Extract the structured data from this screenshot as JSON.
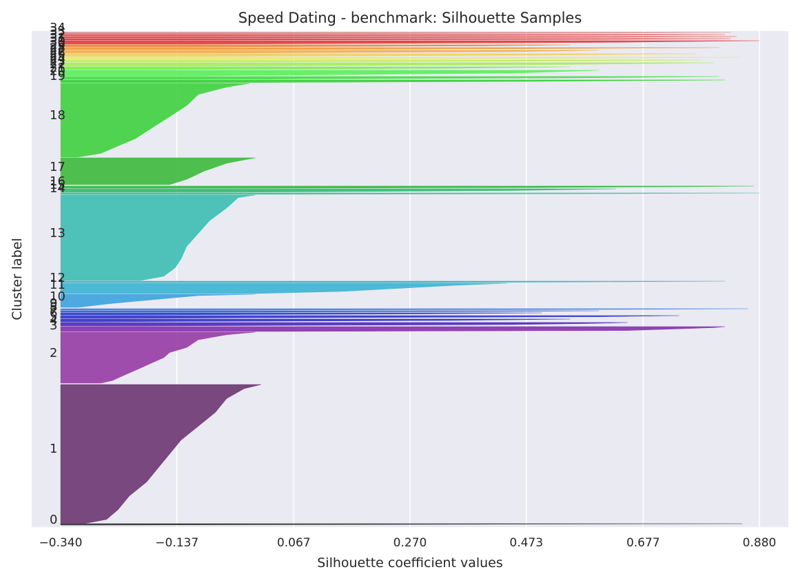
{
  "chart_data": {
    "type": "silhouette",
    "title": "Speed Dating - benchmark: Silhouette Samples",
    "xlabel": "Silhouette coefficient values",
    "ylabel": "Cluster label",
    "xlim": [
      -0.34,
      0.88
    ],
    "x_ticks": [
      -0.34,
      -0.137,
      0.067,
      0.27,
      0.473,
      0.677,
      0.88
    ],
    "x_tick_labels": [
      "−0.340",
      "−0.137",
      "0.067",
      "0.270",
      "0.473",
      "0.677",
      "0.880"
    ],
    "grid": true,
    "background": "#eaeaf2",
    "clusters": [
      {
        "label": "0",
        "color": "#353535",
        "profile": [
          [
            0,
            0.85
          ],
          [
            1,
            -0.34
          ]
        ]
      },
      {
        "label": "1",
        "color": "#723f78",
        "profile": [
          [
            0,
            0.01
          ],
          [
            0.03,
            -0.02
          ],
          [
            0.1,
            -0.05
          ],
          [
            0.2,
            -0.07
          ],
          [
            0.3,
            -0.1
          ],
          [
            0.4,
            -0.13
          ],
          [
            0.5,
            -0.15
          ],
          [
            0.6,
            -0.17
          ],
          [
            0.7,
            -0.19
          ],
          [
            0.8,
            -0.22
          ],
          [
            0.9,
            -0.24
          ],
          [
            0.97,
            -0.26
          ],
          [
            1,
            -0.3
          ]
        ]
      },
      {
        "label": "2",
        "color": "#9b45a8",
        "profile": [
          [
            0,
            0.0
          ],
          [
            0.05,
            -0.05
          ],
          [
            0.15,
            -0.1
          ],
          [
            0.3,
            -0.12
          ],
          [
            0.4,
            -0.15
          ],
          [
            0.5,
            -0.16
          ],
          [
            0.6,
            -0.18
          ],
          [
            0.7,
            -0.2
          ],
          [
            0.85,
            -0.23
          ],
          [
            0.95,
            -0.25
          ],
          [
            1,
            -0.27
          ]
        ]
      },
      {
        "label": "3",
        "color": "#8b3ab0",
        "profile": [
          [
            0,
            0.82
          ],
          [
            0.2,
            0.8
          ],
          [
            0.5,
            0.73
          ],
          [
            0.8,
            0.65
          ],
          [
            1,
            0.0
          ]
        ]
      },
      {
        "label": "4",
        "color": "#5234c0",
        "profile": [
          [
            0,
            0.65
          ],
          [
            0.3,
            0.58
          ],
          [
            0.6,
            0.45
          ],
          [
            1,
            -0.2
          ]
        ]
      },
      {
        "label": "5",
        "color": "#3a38c6",
        "profile": [
          [
            0,
            0.55
          ],
          [
            0.5,
            0.35
          ],
          [
            1,
            -0.3
          ]
        ]
      },
      {
        "label": "6",
        "color": "#3b3bd0",
        "profile": [
          [
            0,
            0.74
          ],
          [
            0.4,
            0.6
          ],
          [
            1,
            -0.25
          ]
        ]
      },
      {
        "label": "7",
        "color": "#2b47c8",
        "profile": [
          [
            0,
            0.5
          ],
          [
            0.5,
            0.3
          ],
          [
            1,
            -0.2
          ]
        ]
      },
      {
        "label": "8",
        "color": "#3a60d6",
        "profile": [
          [
            0,
            0.6
          ],
          [
            0.5,
            0.4
          ],
          [
            1,
            -0.1
          ]
        ]
      },
      {
        "label": "9",
        "color": "#3f80e0",
        "profile": [
          [
            0,
            0.86
          ],
          [
            0.5,
            0.6
          ],
          [
            1,
            -0.1
          ]
        ]
      },
      {
        "label": "10",
        "color": "#45a5de",
        "profile": [
          [
            0,
            -0.0
          ],
          [
            0.1,
            -0.1
          ],
          [
            0.3,
            -0.15
          ],
          [
            0.5,
            -0.2
          ],
          [
            0.7,
            -0.25
          ],
          [
            0.9,
            -0.29
          ],
          [
            1,
            -0.31
          ]
        ]
      },
      {
        "label": "11",
        "color": "#43b6d4",
        "profile": [
          [
            0,
            0.44
          ],
          [
            0.2,
            0.35
          ],
          [
            0.5,
            0.25
          ],
          [
            0.8,
            0.15
          ],
          [
            1,
            0.0
          ]
        ]
      },
      {
        "label": "12",
        "color": "#3fb6c2",
        "profile": [
          [
            0,
            0.82
          ],
          [
            0.5,
            0.6
          ],
          [
            1,
            0.3
          ]
        ]
      },
      {
        "label": "13",
        "color": "#46bfb5",
        "profile": [
          [
            0,
            0.0
          ],
          [
            0.03,
            -0.03
          ],
          [
            0.15,
            -0.05
          ],
          [
            0.3,
            -0.08
          ],
          [
            0.45,
            -0.1
          ],
          [
            0.6,
            -0.12
          ],
          [
            0.75,
            -0.13
          ],
          [
            0.85,
            -0.14
          ],
          [
            0.95,
            -0.16
          ],
          [
            1,
            -0.2
          ]
        ]
      },
      {
        "label": "14",
        "color": "#3ec29a",
        "profile": [
          [
            0,
            0.88
          ],
          [
            0.5,
            0.6
          ],
          [
            1,
            0.0
          ]
        ]
      },
      {
        "label": "15",
        "color": "#3bbf72",
        "profile": [
          [
            0,
            0.63
          ],
          [
            0.5,
            0.45
          ],
          [
            1,
            -0.05
          ]
        ]
      },
      {
        "label": "16",
        "color": "#3cb84a",
        "profile": [
          [
            0,
            0.87
          ],
          [
            0.3,
            0.75
          ],
          [
            0.7,
            0.5
          ],
          [
            1,
            -0.05
          ]
        ]
      },
      {
        "label": "17",
        "color": "#46bd46",
        "profile": [
          [
            0,
            -0.0
          ],
          [
            0.2,
            -0.05
          ],
          [
            0.5,
            -0.09
          ],
          [
            0.8,
            -0.12
          ],
          [
            1,
            -0.15
          ]
        ]
      },
      {
        "label": "18",
        "color": "#48d248",
        "profile": [
          [
            0,
            -0.01
          ],
          [
            0.05,
            -0.05
          ],
          [
            0.15,
            -0.1
          ],
          [
            0.3,
            -0.12
          ],
          [
            0.45,
            -0.15
          ],
          [
            0.6,
            -0.18
          ],
          [
            0.75,
            -0.21
          ],
          [
            0.85,
            -0.24
          ],
          [
            0.95,
            -0.27
          ],
          [
            1,
            -0.31
          ]
        ]
      },
      {
        "label": "19",
        "color": "#3ed23e",
        "profile": [
          [
            0,
            0.82
          ],
          [
            0.5,
            0.5
          ],
          [
            1,
            -0.1
          ]
        ]
      },
      {
        "label": "20",
        "color": "#48e048",
        "profile": [
          [
            0,
            0.81
          ],
          [
            0.5,
            0.55
          ],
          [
            1,
            -0.1
          ]
        ]
      },
      {
        "label": "21",
        "color": "#5ef05e",
        "profile": [
          [
            0,
            0.6
          ],
          [
            0.5,
            0.45
          ],
          [
            1,
            -0.1
          ]
        ]
      },
      {
        "label": "22",
        "color": "#7bf050",
        "profile": [
          [
            0,
            0.55
          ],
          [
            0.5,
            0.35
          ],
          [
            1,
            -0.2
          ]
        ]
      },
      {
        "label": "23",
        "color": "#aaee5a",
        "profile": [
          [
            0,
            0.8
          ],
          [
            0.5,
            0.55
          ],
          [
            1,
            -0.1
          ]
        ]
      },
      {
        "label": "24",
        "color": "#c8ec68",
        "profile": [
          [
            0,
            0.78
          ],
          [
            0.5,
            0.55
          ],
          [
            1,
            -0.1
          ]
        ]
      },
      {
        "label": "25",
        "color": "#e6ec76",
        "profile": [
          [
            0,
            0.85
          ],
          [
            0.5,
            0.6
          ],
          [
            1,
            -0.1
          ]
        ]
      },
      {
        "label": "26",
        "color": "#f0d265",
        "profile": [
          [
            0,
            0.77
          ],
          [
            0.5,
            0.5
          ],
          [
            1,
            -0.1
          ]
        ]
      },
      {
        "label": "27",
        "color": "#f5b04f",
        "profile": [
          [
            0,
            0.6
          ],
          [
            0.5,
            0.45
          ],
          [
            1,
            -0.1
          ]
        ]
      },
      {
        "label": "28",
        "color": "#f0a040",
        "profile": [
          [
            0,
            0.81
          ],
          [
            0.5,
            0.5
          ],
          [
            1,
            -0.05
          ]
        ]
      },
      {
        "label": "29",
        "color": "#ef8a35",
        "profile": [
          [
            0,
            0.55
          ],
          [
            0.5,
            0.4
          ],
          [
            1,
            -0.1
          ]
        ]
      },
      {
        "label": "30",
        "color": "#e84040",
        "profile": [
          [
            0,
            0.88
          ],
          [
            0.5,
            0.6
          ],
          [
            1,
            -0.1
          ]
        ]
      },
      {
        "label": "31",
        "color": "#e63a3a",
        "profile": [
          [
            0,
            0.83
          ],
          [
            0.5,
            0.6
          ],
          [
            1,
            -0.1
          ]
        ]
      },
      {
        "label": "32",
        "color": "#e04848",
        "profile": [
          [
            0,
            0.84
          ],
          [
            0.5,
            0.6
          ],
          [
            1,
            -0.1
          ]
        ]
      },
      {
        "label": "33",
        "color": "#e05050",
        "profile": [
          [
            0,
            0.82
          ],
          [
            0.5,
            0.6
          ],
          [
            1,
            -0.1
          ]
        ]
      },
      {
        "label": "34",
        "color": "#d88080",
        "profile": [
          [
            0,
            0.83
          ],
          [
            0.5,
            0.6
          ],
          [
            1,
            -0.1
          ]
        ]
      }
    ]
  }
}
